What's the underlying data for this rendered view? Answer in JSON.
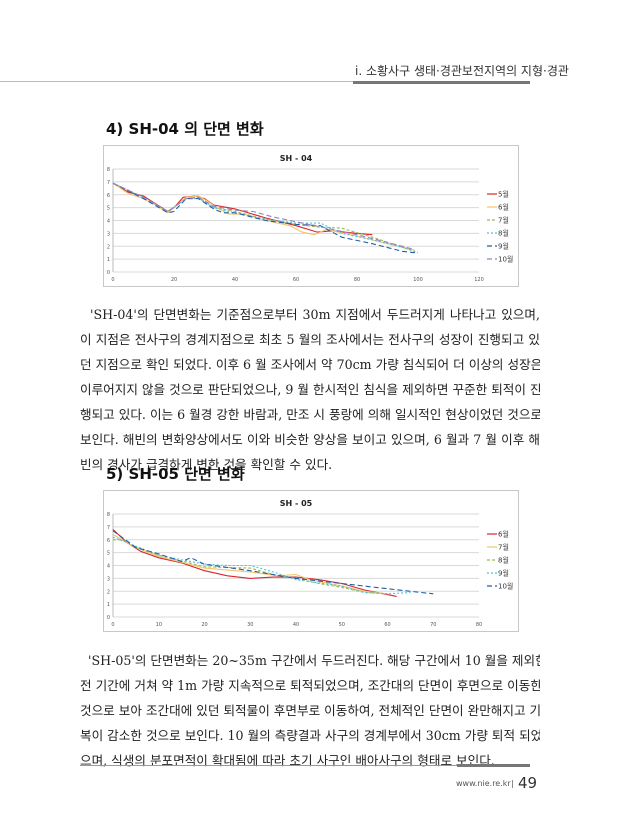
{
  "header": {
    "running_title": "i. 소황사구 생태·경관보전지역의 지형·경관"
  },
  "sections": [
    {
      "title": "4) SH-04 의 단면 변화",
      "paragraph_lines": [
        "  'SH-04'의 단면변화는 기준점으로부터 30m 지점에서 두드러지게 나타나고 있으며,",
        "이 지점은 전사구의 경계지점으로 최초 5 월의 조사에서는 전사구의 성장이 진행되고 있",
        "던 지점으로 확인 되었다. 이후 6 월 조사에서 약 70cm 가량 침식되어 더 이상의 성장은",
        "이루어지지 않을 것으로 판단되었으나, 9 월 한시적인 침식을 제외하면 꾸준한 퇴적이 진",
        "행되고 있다. 이는 6 월경 강한 바람과, 만조 시 풍랑에 의해 일시적인 현상이었던 것으로",
        "보인다. 해빈의 변화양상에서도 이와 비슷한 양상을 보이고 있으며, 6 월과 7 월 이후 해",
        "빈의 경사가 급격하게 변한 것을 확인할 수 있다."
      ]
    },
    {
      "title": "5) SH-05 단면 변화",
      "paragraph_lines": [
        "  'SH-05'의 단면변화는 20~35m 구간에서 두드러진다. 해당 구간에서 10 월을 제외한",
        "전 기간에 거쳐 약 1m 가량 지속적으로 퇴적되었으며, 조간대의 단면이 후면으로 이동한",
        "것으로 보아 조간대에 있던 퇴적물이 후면부로 이동하여, 전체적인 단면이 완만해지고 기",
        "복이 감소한 것으로 보인다. 10 월의 측량결과 사구의 경계부에서 30cm 가량 퇴적 되었",
        "으며, 식생의 분포면적이 확대됨에 따라 초기 사구인 배아사구의 형태로 보인다."
      ]
    }
  ],
  "footer": {
    "url": "www.nie.re.kr",
    "separator": "|",
    "page_number": "49"
  },
  "chart_data": [
    {
      "type": "line",
      "title": "SH - 04",
      "xlabel": "",
      "ylabel": "",
      "xlim": [
        0,
        120
      ],
      "ylim": [
        0,
        8
      ],
      "xticks": [
        0,
        20,
        40,
        60,
        80,
        100,
        120
      ],
      "yticks": [
        0,
        1,
        2,
        3,
        4,
        5,
        6,
        7,
        8
      ],
      "grid": true,
      "legend": "right",
      "series": [
        {
          "name": "5월",
          "color": "#d8262b",
          "dash": "",
          "points": [
            [
              0,
              6.9
            ],
            [
              5,
              6.2
            ],
            [
              10,
              5.9
            ],
            [
              14,
              5.3
            ],
            [
              18,
              4.7
            ],
            [
              20,
              5.0
            ],
            [
              23,
              5.8
            ],
            [
              27,
              5.9
            ],
            [
              30,
              5.7
            ],
            [
              33,
              5.2
            ],
            [
              40,
              4.9
            ],
            [
              50,
              4.2
            ],
            [
              60,
              3.6
            ],
            [
              67,
              3.1
            ],
            [
              72,
              3.2
            ],
            [
              80,
              3.0
            ],
            [
              85,
              2.9
            ]
          ]
        },
        {
          "name": "6월",
          "color": "#f5c36b",
          "dash": "",
          "points": [
            [
              0,
              6.9
            ],
            [
              5,
              6.1
            ],
            [
              10,
              5.7
            ],
            [
              14,
              5.2
            ],
            [
              18,
              4.6
            ],
            [
              21,
              5.2
            ],
            [
              24,
              5.8
            ],
            [
              28,
              5.9
            ],
            [
              31,
              5.5
            ],
            [
              34,
              5.0
            ],
            [
              38,
              4.5
            ],
            [
              43,
              4.5
            ],
            [
              50,
              4.0
            ],
            [
              58,
              3.6
            ],
            [
              62,
              3.1
            ],
            [
              66,
              2.9
            ],
            [
              70,
              3.3
            ],
            [
              80,
              2.8
            ],
            [
              90,
              2.2
            ],
            [
              99,
              1.7
            ]
          ]
        },
        {
          "name": "7월",
          "color": "#9bbb59",
          "dash": "3,2",
          "points": [
            [
              0,
              6.9
            ],
            [
              10,
              5.8
            ],
            [
              18,
              4.7
            ],
            [
              24,
              5.7
            ],
            [
              28,
              5.8
            ],
            [
              33,
              5.0
            ],
            [
              40,
              4.7
            ],
            [
              50,
              4.1
            ],
            [
              60,
              3.7
            ],
            [
              67,
              3.5
            ],
            [
              75,
              3.4
            ],
            [
              85,
              2.7
            ],
            [
              99,
              1.6
            ]
          ]
        },
        {
          "name": "8월",
          "color": "#4bc4e0",
          "dash": "2,2",
          "points": [
            [
              0,
              6.9
            ],
            [
              10,
              5.8
            ],
            [
              18,
              4.7
            ],
            [
              24,
              5.7
            ],
            [
              28,
              5.7
            ],
            [
              33,
              5.0
            ],
            [
              38,
              4.7
            ],
            [
              50,
              4.1
            ],
            [
              60,
              3.8
            ],
            [
              68,
              3.8
            ],
            [
              75,
              3.0
            ],
            [
              85,
              2.5
            ],
            [
              95,
              1.9
            ],
            [
              100,
              1.5
            ]
          ]
        },
        {
          "name": "9월",
          "color": "#1f5fa8",
          "dash": "5,3",
          "points": [
            [
              0,
              6.9
            ],
            [
              10,
              5.7
            ],
            [
              18,
              4.6
            ],
            [
              20,
              4.7
            ],
            [
              24,
              5.7
            ],
            [
              28,
              5.7
            ],
            [
              33,
              4.9
            ],
            [
              36,
              4.6
            ],
            [
              40,
              4.6
            ],
            [
              50,
              4.0
            ],
            [
              60,
              3.7
            ],
            [
              68,
              3.6
            ],
            [
              75,
              2.7
            ],
            [
              85,
              2.2
            ],
            [
              95,
              1.6
            ],
            [
              99,
              1.5
            ]
          ]
        },
        {
          "name": "10월",
          "color": "#9a7fc4",
          "dash": "5,3",
          "points": [
            [
              0,
              6.9
            ],
            [
              10,
              5.8
            ],
            [
              18,
              4.7
            ],
            [
              24,
              5.7
            ],
            [
              28,
              5.8
            ],
            [
              33,
              5.1
            ],
            [
              40,
              4.8
            ],
            [
              46,
              4.7
            ],
            [
              52,
              4.3
            ],
            [
              60,
              3.9
            ],
            [
              70,
              3.4
            ],
            [
              80,
              2.9
            ],
            [
              90,
              2.3
            ],
            [
              98,
              1.8
            ]
          ]
        }
      ]
    },
    {
      "type": "line",
      "title": "SH - 05",
      "xlabel": "",
      "ylabel": "",
      "xlim": [
        0,
        80
      ],
      "ylim": [
        0,
        8
      ],
      "xticks": [
        0,
        10,
        20,
        30,
        40,
        50,
        60,
        70,
        80
      ],
      "yticks": [
        0,
        1,
        2,
        3,
        4,
        5,
        6,
        7,
        8
      ],
      "grid": true,
      "legend": "right",
      "series": [
        {
          "name": "6월",
          "color": "#d8262b",
          "dash": "",
          "points": [
            [
              0,
              6.8
            ],
            [
              3,
              5.8
            ],
            [
              6,
              5.1
            ],
            [
              10,
              4.6
            ],
            [
              15,
              4.2
            ],
            [
              20,
              3.6
            ],
            [
              25,
              3.2
            ],
            [
              30,
              3.0
            ],
            [
              35,
              3.1
            ],
            [
              40,
              3.1
            ],
            [
              45,
              2.9
            ],
            [
              50,
              2.6
            ],
            [
              55,
              2.1
            ],
            [
              62,
              1.6
            ]
          ]
        },
        {
          "name": "7월",
          "color": "#f5c36b",
          "dash": "",
          "points": [
            [
              0,
              6.4
            ],
            [
              5,
              5.4
            ],
            [
              10,
              4.7
            ],
            [
              20,
              3.8
            ],
            [
              30,
              3.5
            ],
            [
              36,
              3.2
            ],
            [
              40,
              3.3
            ],
            [
              43,
              2.9
            ],
            [
              50,
              2.4
            ],
            [
              55,
              2.0
            ],
            [
              60,
              1.8
            ]
          ]
        },
        {
          "name": "8월",
          "color": "#9bbb59",
          "dash": "3,2",
          "points": [
            [
              0,
              6.0
            ],
            [
              2,
              6.0
            ],
            [
              5,
              5.4
            ],
            [
              10,
              4.8
            ],
            [
              20,
              3.9
            ],
            [
              30,
              3.8
            ],
            [
              35,
              3.3
            ],
            [
              40,
              3.0
            ],
            [
              45,
              2.6
            ],
            [
              50,
              2.3
            ],
            [
              55,
              1.9
            ],
            [
              60,
              1.8
            ]
          ]
        },
        {
          "name": "9월",
          "color": "#4bc4e0",
          "dash": "2,2",
          "points": [
            [
              0,
              6.2
            ],
            [
              5,
              5.5
            ],
            [
              10,
              4.8
            ],
            [
              20,
              4.1
            ],
            [
              25,
              4.0
            ],
            [
              30,
              4.0
            ],
            [
              35,
              3.5
            ],
            [
              40,
              2.9
            ],
            [
              50,
              2.4
            ],
            [
              55,
              1.9
            ],
            [
              60,
              1.8
            ],
            [
              65,
              1.9
            ]
          ]
        },
        {
          "name": "10월",
          "color": "#1f5fa8",
          "dash": "5,3",
          "points": [
            [
              0,
              6.7
            ],
            [
              5,
              5.4
            ],
            [
              10,
              4.9
            ],
            [
              15,
              4.3
            ],
            [
              17,
              4.6
            ],
            [
              20,
              4.1
            ],
            [
              30,
              3.6
            ],
            [
              40,
              3.0
            ],
            [
              50,
              2.6
            ],
            [
              60,
              2.2
            ],
            [
              65,
              2.0
            ],
            [
              70,
              1.8
            ]
          ]
        }
      ]
    }
  ]
}
